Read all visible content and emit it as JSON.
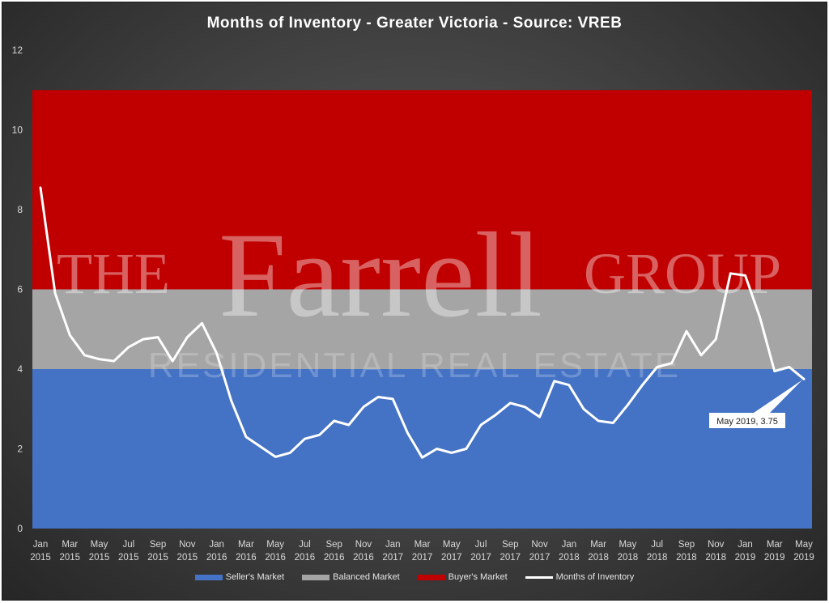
{
  "chart_data": {
    "type": "line",
    "title": "Months of Inventory - Greater Victoria - Source:  VREB",
    "y_ticks": [
      "0",
      "2",
      "4",
      "6",
      "8",
      "10",
      "12"
    ],
    "ylim": [
      0,
      12
    ],
    "grid": false,
    "legend_position": "bottom",
    "x_tick_labels": [
      {
        "month": "Jan",
        "year": "2015"
      },
      {
        "month": "Mar",
        "year": "2015"
      },
      {
        "month": "May",
        "year": "2015"
      },
      {
        "month": "Jul",
        "year": "2015"
      },
      {
        "month": "Sep",
        "year": "2015"
      },
      {
        "month": "Nov",
        "year": "2015"
      },
      {
        "month": "Jan",
        "year": "2016"
      },
      {
        "month": "Mar",
        "year": "2016"
      },
      {
        "month": "May",
        "year": "2016"
      },
      {
        "month": "Jul",
        "year": "2016"
      },
      {
        "month": "Sep",
        "year": "2016"
      },
      {
        "month": "Nov",
        "year": "2016"
      },
      {
        "month": "Jan",
        "year": "2017"
      },
      {
        "month": "Mar",
        "year": "2017"
      },
      {
        "month": "May",
        "year": "2017"
      },
      {
        "month": "Jul",
        "year": "2017"
      },
      {
        "month": "Sep",
        "year": "2017"
      },
      {
        "month": "Nov",
        "year": "2017"
      },
      {
        "month": "Jan",
        "year": "2018"
      },
      {
        "month": "Mar",
        "year": "2018"
      },
      {
        "month": "May",
        "year": "2018"
      },
      {
        "month": "Jul",
        "year": "2018"
      },
      {
        "month": "Sep",
        "year": "2018"
      },
      {
        "month": "Nov",
        "year": "2018"
      },
      {
        "month": "Jan",
        "year": "2019"
      },
      {
        "month": "Mar",
        "year": "2019"
      },
      {
        "month": "May",
        "year": "2019"
      }
    ],
    "bands": [
      {
        "name": "Seller's Market",
        "from": 0,
        "to": 4,
        "color": "#4472c4"
      },
      {
        "name": "Balanced Market",
        "from": 4,
        "to": 6,
        "color": "#a5a5a5"
      },
      {
        "name": "Buyer's Market",
        "from": 6,
        "to": 11,
        "color": "#c00000"
      }
    ],
    "series": [
      {
        "name": "Months of Inventory",
        "color": "#ffffff",
        "values": [
          8.55,
          5.9,
          4.85,
          4.35,
          4.25,
          4.2,
          4.55,
          4.75,
          4.8,
          4.2,
          4.8,
          5.15,
          4.4,
          3.2,
          2.3,
          2.05,
          1.8,
          1.9,
          2.25,
          2.35,
          2.7,
          2.6,
          3.05,
          3.3,
          3.25,
          2.4,
          1.78,
          2.0,
          1.9,
          2.0,
          2.6,
          2.85,
          3.15,
          3.05,
          2.8,
          3.7,
          3.6,
          3.0,
          2.7,
          2.65,
          3.1,
          3.6,
          4.05,
          4.15,
          4.95,
          4.35,
          4.75,
          6.4,
          6.35,
          5.3,
          3.95,
          4.05,
          3.75
        ]
      }
    ],
    "annotation": {
      "text": "May 2019, 3.75"
    }
  },
  "watermark": {
    "line1_left": "THE",
    "line1_mid": "Farrell",
    "line1_right": "GROUP",
    "line2": "RESIDENTIAL REAL ESTATE"
  }
}
